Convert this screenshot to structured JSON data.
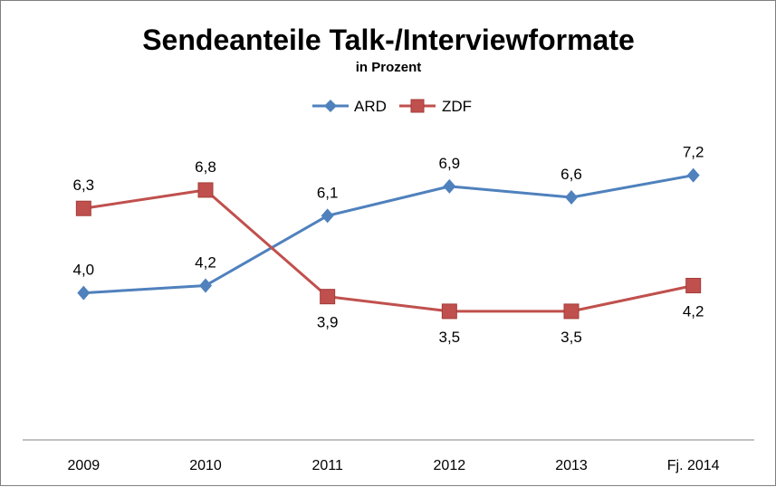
{
  "chart_data": {
    "type": "line",
    "title": "Sendeanteile Talk-/Interviewformate",
    "subtitle": "in Prozent",
    "categories": [
      "2009",
      "2010",
      "2011",
      "2012",
      "2013",
      "Fj. 2014"
    ],
    "series": [
      {
        "name": "ARD",
        "values": [
          4.0,
          4.2,
          6.1,
          6.9,
          6.6,
          7.2
        ],
        "labels": [
          "4,0",
          "4,2",
          "6,1",
          "6,9",
          "6,6",
          "7,2"
        ],
        "color": "#4f81bd",
        "marker": "diamond",
        "label_position": "above"
      },
      {
        "name": "ZDF",
        "values": [
          6.3,
          6.8,
          3.9,
          3.5,
          3.5,
          4.2
        ],
        "labels": [
          "6,3",
          "6,8",
          "3,9",
          "3,5",
          "3,5",
          "4,2"
        ],
        "color": "#c0504d",
        "marker": "square",
        "label_position": "above-first-two-then-below"
      }
    ],
    "ylim": [
      0,
      11
    ],
    "grid": false,
    "legend_position": "top-center",
    "xlabel": "",
    "ylabel": ""
  }
}
